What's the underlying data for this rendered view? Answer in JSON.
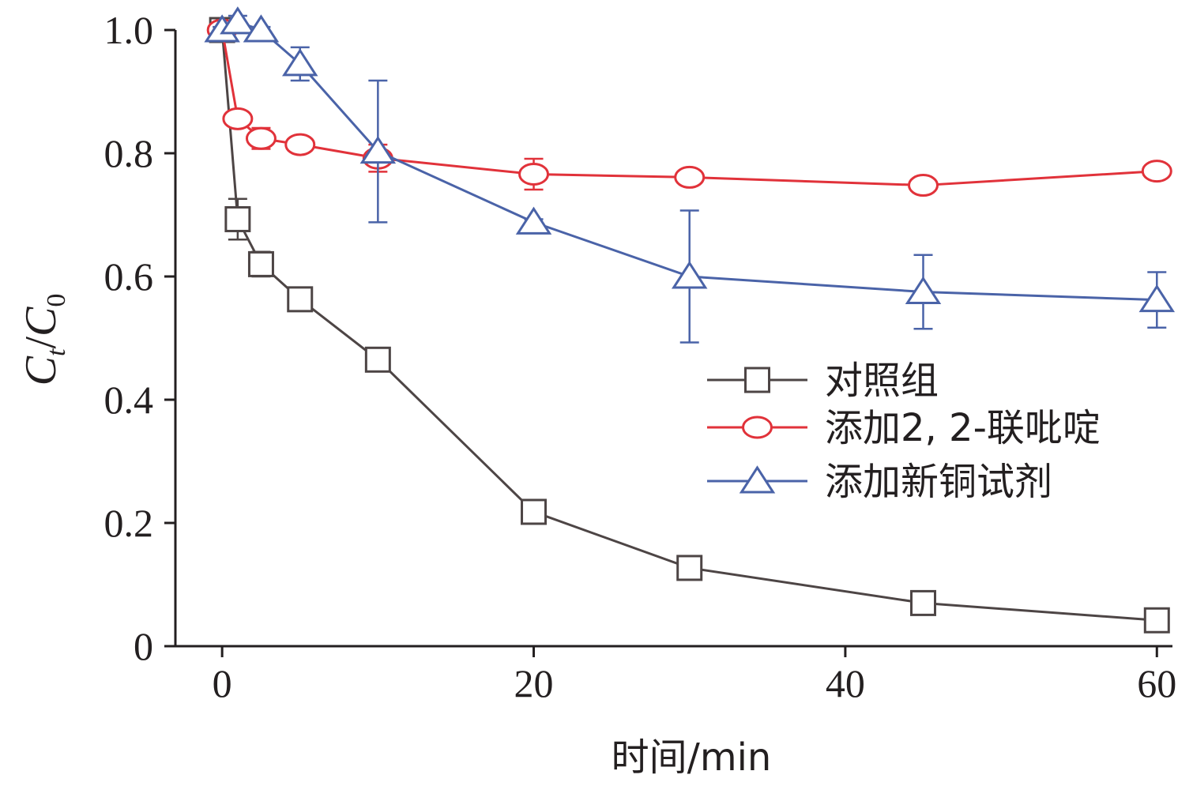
{
  "chart_data": {
    "type": "line",
    "title": "",
    "xlabel": "时间/min",
    "ylabel": "C_t/C_0",
    "ylabel_parts": {
      "main1": "C",
      "sub1": "t",
      "slash": "/",
      "main2": "C",
      "sub2": "0"
    },
    "xlim": [
      -3,
      61
    ],
    "ylim": [
      0,
      1.0
    ],
    "xticks": [
      0,
      20,
      40,
      60
    ],
    "xtick_labels": [
      "0",
      "20",
      "40",
      "60"
    ],
    "yticks": [
      0,
      0.2,
      0.4,
      0.6,
      0.8,
      1.0
    ],
    "ytick_labels": [
      "0",
      "0.2",
      "0.4",
      "0.6",
      "0.8",
      "1.0"
    ],
    "grid": false,
    "legend_position": "center-right",
    "series": [
      {
        "name": "对照组",
        "marker": "square",
        "color": "#4d4545",
        "x": [
          0,
          1,
          2.5,
          5,
          10,
          20,
          30,
          45,
          60
        ],
        "y": [
          1.0,
          0.693,
          0.62,
          0.563,
          0.465,
          0.218,
          0.127,
          0.07,
          0.042
        ],
        "err": [
          0.005,
          0.033,
          0.02,
          0.008,
          0.01,
          0.01,
          0.008,
          0.008,
          0.008
        ]
      },
      {
        "name": "添加2, 2-联吡啶",
        "marker": "circle",
        "color": "#e1323a",
        "x": [
          0,
          1,
          2.5,
          5,
          10,
          20,
          30,
          45,
          60
        ],
        "y": [
          1.0,
          0.856,
          0.824,
          0.814,
          0.792,
          0.766,
          0.761,
          0.748,
          0.771
        ],
        "err": [
          0.005,
          0.012,
          0.017,
          0.012,
          0.022,
          0.025,
          0.013,
          0.013,
          0.01
        ]
      },
      {
        "name": "添加新铜试剂",
        "marker": "triangle",
        "color": "#4a63a8",
        "x": [
          0,
          1,
          2.5,
          5,
          10,
          20,
          30,
          45,
          60
        ],
        "y": [
          1.0,
          1.013,
          1.0,
          0.945,
          0.803,
          0.688,
          0.6,
          0.575,
          0.562
        ],
        "err": [
          0.005,
          0.01,
          0.005,
          0.027,
          0.115,
          0.005,
          0.107,
          0.06,
          0.045
        ]
      }
    ]
  }
}
